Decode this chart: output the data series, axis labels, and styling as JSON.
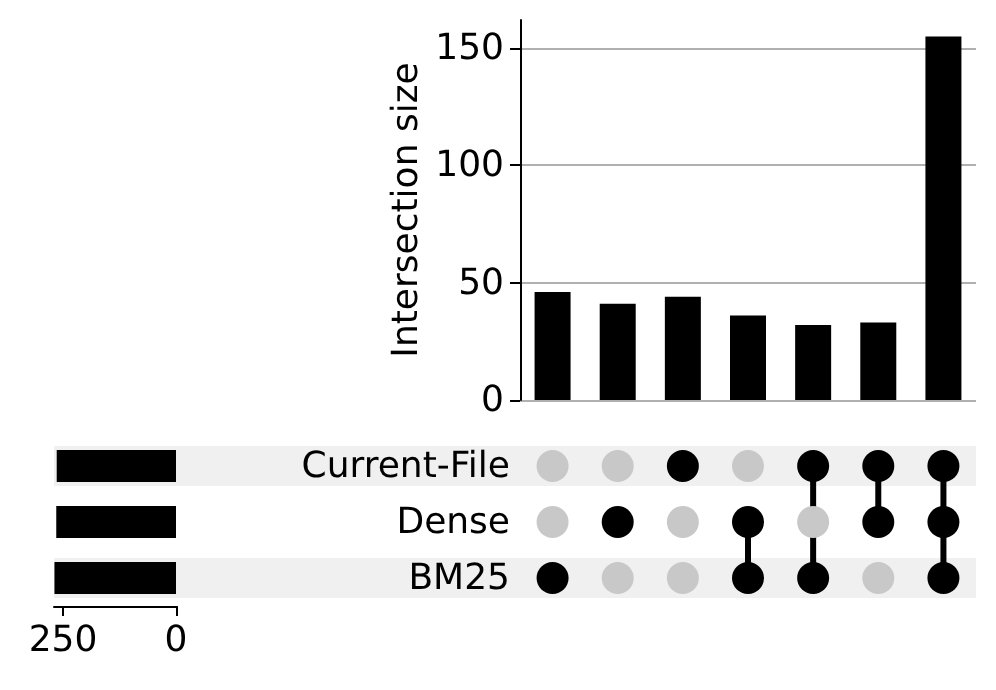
{
  "chart_data": [
    {
      "type": "bar",
      "ylabel": "Intersection size",
      "categories": [
        null,
        null,
        null,
        null,
        null,
        null,
        null
      ],
      "values": [
        46,
        41,
        44,
        36,
        32,
        33,
        155
      ],
      "color": "#000000",
      "ylim": [
        0,
        162
      ],
      "yticks": [
        0,
        50,
        100,
        150
      ],
      "grid": "y"
    },
    {
      "type": "bar",
      "orientation": "horizontal",
      "categories": [
        "Current-File",
        "Dense",
        "BM25"
      ],
      "values": [
        264,
        265,
        269
      ],
      "color": "#000000",
      "xlim": [
        270,
        0
      ],
      "xticks": [
        250,
        0
      ]
    }
  ]
}
